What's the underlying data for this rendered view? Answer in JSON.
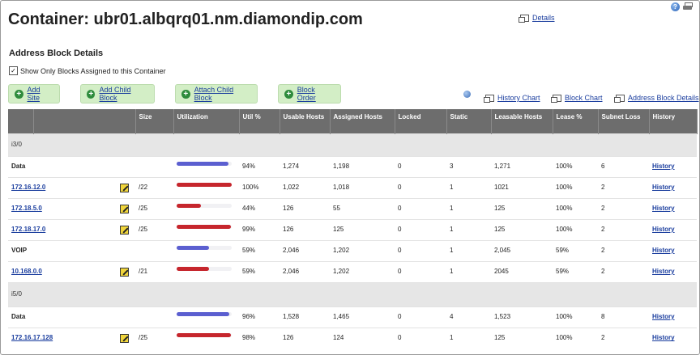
{
  "header": {
    "title": "Container: ubr01.albqrq01.nm.diamondip.com",
    "details_link": "Details"
  },
  "section": {
    "title": "Address Block Details",
    "checkbox_label": "Show Only Blocks Assigned to this Container",
    "checkbox_checked": true
  },
  "buttons": [
    {
      "label": "Add Site"
    },
    {
      "label": "Add Child Block"
    },
    {
      "label": "Attach Child Block"
    },
    {
      "label": "Block Order"
    }
  ],
  "chart_links": [
    {
      "label": "History Chart"
    },
    {
      "label": "Block Chart"
    },
    {
      "label": "Address Block Details"
    }
  ],
  "columns": [
    "",
    "",
    "Size",
    "Utilization",
    "Util %",
    "Usable Hosts",
    "Assigned Hosts",
    "Locked",
    "Static",
    "Leasable Hosts",
    "Lease %",
    "Subnet Loss",
    "History"
  ],
  "rows": [
    {
      "type": "group",
      "name": "i3/0"
    },
    {
      "type": "pool",
      "name": "Data",
      "util": 0.94,
      "color": "blue",
      "util_pct": "94%",
      "usable": "1,274",
      "assigned": "1,198",
      "locked": "0",
      "static": "3",
      "leasable": "1,271",
      "lease_pct": "100%",
      "subnet_loss": "6",
      "history": "History"
    },
    {
      "type": "block",
      "name": "172.16.12.0",
      "size": "/22",
      "util": 1.0,
      "color": "red",
      "util_pct": "100%",
      "usable": "1,022",
      "assigned": "1,018",
      "locked": "0",
      "static": "1",
      "leasable": "1021",
      "lease_pct": "100%",
      "subnet_loss": "2",
      "history": "History"
    },
    {
      "type": "block",
      "name": "172.18.5.0",
      "size": "/25",
      "util": 0.44,
      "color": "red",
      "util_pct": "44%",
      "usable": "126",
      "assigned": "55",
      "locked": "0",
      "static": "1",
      "leasable": "125",
      "lease_pct": "100%",
      "subnet_loss": "2",
      "history": "History"
    },
    {
      "type": "block",
      "name": "172.18.17.0",
      "size": "/25",
      "util": 0.99,
      "color": "red",
      "util_pct": "99%",
      "usable": "126",
      "assigned": "125",
      "locked": "0",
      "static": "1",
      "leasable": "125",
      "lease_pct": "100%",
      "subnet_loss": "2",
      "history": "History"
    },
    {
      "type": "pool",
      "name": "VOIP",
      "util": 0.59,
      "color": "blue",
      "util_pct": "59%",
      "usable": "2,046",
      "assigned": "1,202",
      "locked": "0",
      "static": "1",
      "leasable": "2,045",
      "lease_pct": "59%",
      "subnet_loss": "2",
      "history": "History"
    },
    {
      "type": "block",
      "name": "10.168.0.0",
      "size": "/21",
      "util": 0.59,
      "color": "red",
      "util_pct": "59%",
      "usable": "2,046",
      "assigned": "1,202",
      "locked": "0",
      "static": "1",
      "leasable": "2045",
      "lease_pct": "59%",
      "subnet_loss": "2",
      "history": "History"
    },
    {
      "type": "group",
      "name": "i5/0"
    },
    {
      "type": "pool",
      "name": "Data",
      "util": 0.96,
      "color": "blue",
      "util_pct": "96%",
      "usable": "1,528",
      "assigned": "1,465",
      "locked": "0",
      "static": "4",
      "leasable": "1,523",
      "lease_pct": "100%",
      "subnet_loss": "8",
      "history": "History"
    },
    {
      "type": "block",
      "name": "172.16.17.128",
      "size": "/25",
      "util": 0.98,
      "color": "red",
      "util_pct": "98%",
      "usable": "126",
      "assigned": "124",
      "locked": "0",
      "static": "1",
      "leasable": "125",
      "lease_pct": "100%",
      "subnet_loss": "2",
      "history": "History"
    }
  ]
}
